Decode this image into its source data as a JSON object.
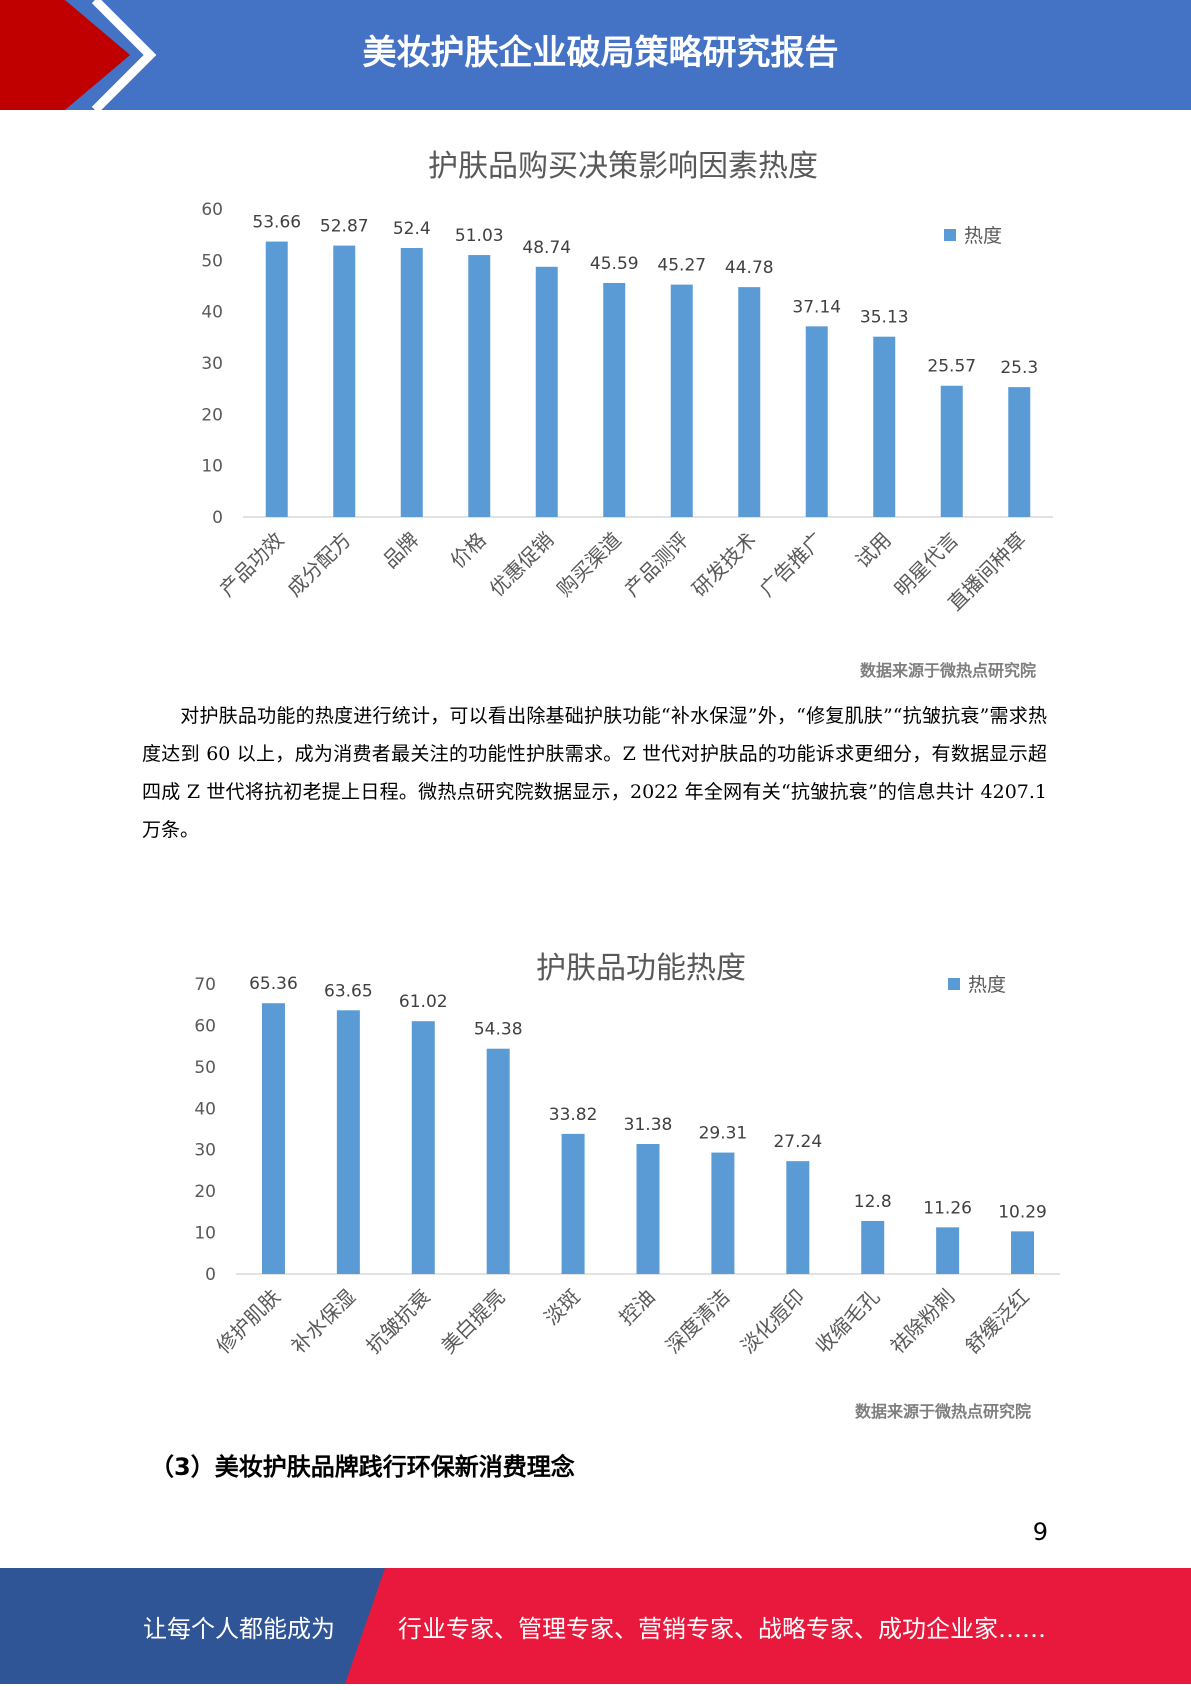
{
  "header": {
    "title": "美妆护肤企业破局策略研究报告"
  },
  "charts": [
    {
      "title": "护肤品购买决策影响因素热度",
      "legend": "热度",
      "source": "数据来源于微热点研究院"
    },
    {
      "title": "护肤品功能热度",
      "legend": "热度",
      "source": "数据来源于微热点研究院"
    }
  ],
  "chart_data": [
    {
      "type": "bar",
      "title": "护肤品购买决策影响因素热度",
      "categories": [
        "产品功效",
        "成分配方",
        "品牌",
        "价格",
        "优惠促销",
        "购买渠道",
        "产品测评",
        "研发技术",
        "广告推广",
        "试用",
        "明星代言",
        "直播间种草"
      ],
      "series": [
        {
          "name": "热度",
          "values": [
            53.66,
            52.87,
            52.4,
            51.03,
            48.74,
            45.59,
            45.27,
            44.78,
            37.14,
            35.13,
            25.57,
            25.3
          ]
        }
      ],
      "value_labels": [
        "53.66",
        "52.87",
        "52.4",
        "51.03",
        "48.74",
        "45.59",
        "45.27",
        "44.78",
        "37.14",
        "35.13",
        "25.57",
        "25.3"
      ],
      "ylim": [
        0,
        60
      ],
      "yticks": [
        0,
        10,
        20,
        30,
        40,
        50,
        60
      ],
      "grid": false,
      "legend_position": "top-right",
      "bar_color": "#5b9bd5"
    },
    {
      "type": "bar",
      "title": "护肤品功能热度",
      "categories": [
        "修护肌肤",
        "补水保湿",
        "抗皱抗衰",
        "美白提亮",
        "淡斑",
        "控油",
        "深度清洁",
        "淡化痘印",
        "收缩毛孔",
        "祛除粉刺",
        "舒缓泛红"
      ],
      "series": [
        {
          "name": "热度",
          "values": [
            65.36,
            63.65,
            61.02,
            54.38,
            33.82,
            31.38,
            29.31,
            27.24,
            12.8,
            11.26,
            10.29
          ]
        }
      ],
      "value_labels": [
        "65.36",
        "63.65",
        "61.02",
        "54.38",
        "33.82",
        "31.38",
        "29.31",
        "27.24",
        "12.8",
        "11.26",
        "10.29"
      ],
      "ylim": [
        0,
        70
      ],
      "yticks": [
        0,
        10,
        20,
        30,
        40,
        50,
        60,
        70
      ],
      "grid": false,
      "legend_position": "top-right",
      "bar_color": "#5b9bd5"
    }
  ],
  "body": {
    "paragraph": "对护肤品功能的热度进行统计，可以看出除基础护肤功能“补水保湿”外，“修复肌肤”“抗皱抗衰”需求热度达到 60 以上，成为消费者最关注的功能性护肤需求。Z 世代对护肤品的功能诉求更细分，有数据显示超四成 Z 世代将抗初老提上日程。微热点研究院数据显示，2022 年全网有关“抗皱抗衰”的信息共计 4207.1 万条。",
    "section_heading": "（3）美妆护肤品牌践行环保新消费理念"
  },
  "page_number": "9",
  "footer": {
    "left_text": "让每个人都能成为",
    "right_text": "行业专家、管理专家、营销专家、战略专家、成功企业家……"
  },
  "colors": {
    "header_blue": "#4472c4",
    "accent_red": "#c00000",
    "footer_blue": "#2f5597",
    "footer_red": "#e8193c"
  }
}
